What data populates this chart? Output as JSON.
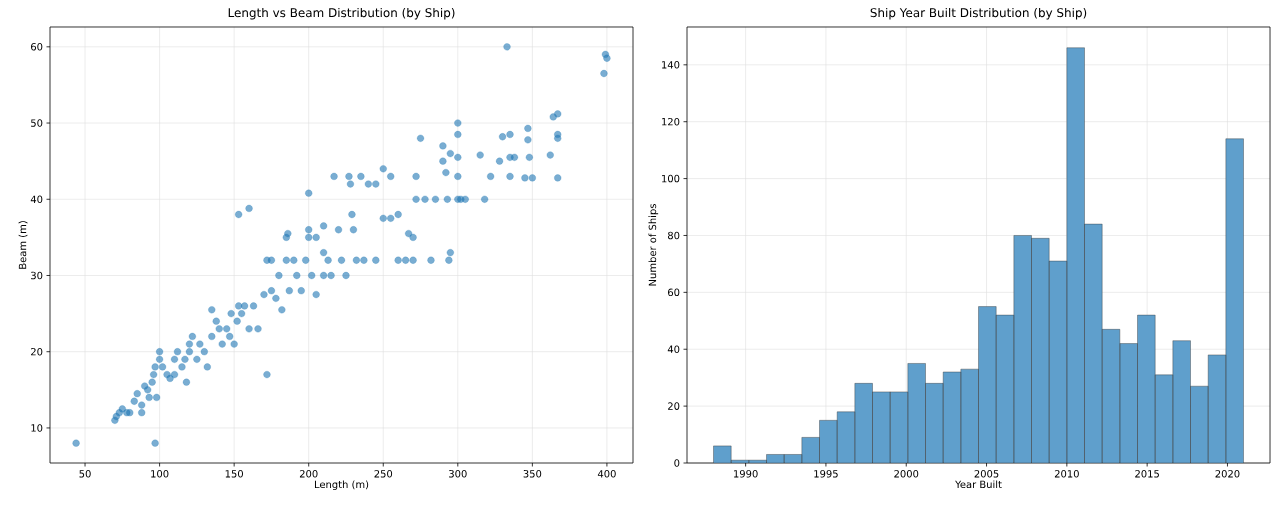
{
  "chart_data": [
    {
      "type": "scatter",
      "title": "Length vs Beam Distribution (by Ship)",
      "xlabel": "Length (m)",
      "ylabel": "Beam (m)",
      "color": "#1f77b4",
      "marker": "circle",
      "grid": true,
      "xlim": [
        26.5,
        417.5
      ],
      "ylim": [
        5.4,
        62.6
      ],
      "xticks": [
        50,
        100,
        150,
        200,
        250,
        300,
        350,
        400
      ],
      "yticks": [
        10,
        20,
        30,
        40,
        50,
        60
      ],
      "x": [
        44,
        97,
        70,
        71,
        73,
        75,
        78,
        80,
        83,
        85,
        88,
        88,
        90,
        92,
        93,
        95,
        96,
        97,
        98,
        100,
        100,
        102,
        105,
        107,
        110,
        110,
        112,
        115,
        117,
        118,
        120,
        120,
        122,
        125,
        127,
        130,
        132,
        135,
        135,
        138,
        140,
        142,
        145,
        147,
        148,
        150,
        152,
        153,
        153,
        155,
        157,
        160,
        160,
        163,
        166,
        170,
        172,
        172,
        175,
        175,
        178,
        180,
        182,
        185,
        185,
        186,
        187,
        190,
        192,
        195,
        198,
        200,
        200,
        200,
        202,
        205,
        205,
        210,
        210,
        210,
        213,
        215,
        217,
        220,
        222,
        225,
        227,
        228,
        229,
        230,
        232,
        235,
        237,
        240,
        245,
        245,
        250,
        250,
        255,
        255,
        260,
        260,
        265,
        267,
        270,
        270,
        272,
        272,
        275,
        278,
        282,
        285,
        290,
        290,
        292,
        293,
        294,
        295,
        295,
        300,
        300,
        300,
        300,
        300,
        302,
        305,
        315,
        318,
        322,
        328,
        330,
        333,
        335,
        335,
        335,
        338,
        345,
        347,
        347,
        348,
        350,
        362,
        364,
        367,
        367,
        367,
        367,
        399,
        400,
        398
      ],
      "values": [
        8,
        8,
        11,
        11.5,
        12,
        12.5,
        12,
        12,
        13.5,
        14.5,
        12,
        13,
        15.5,
        15,
        14,
        16,
        17,
        18,
        14,
        19,
        20,
        18,
        17,
        16.5,
        17,
        19,
        20,
        18,
        19,
        16,
        21,
        20,
        22,
        19,
        21,
        20,
        18,
        22,
        25.5,
        24,
        23,
        21,
        23,
        22,
        25,
        21,
        24,
        26,
        38,
        25,
        26,
        23,
        38.8,
        26,
        23,
        27.5,
        17,
        32,
        28,
        32,
        27,
        30,
        25.5,
        32,
        35,
        35.5,
        28,
        32,
        30,
        28,
        32,
        36,
        40.8,
        35,
        30,
        27.5,
        35,
        30,
        33,
        36.5,
        32,
        30,
        43,
        36,
        32,
        30,
        43,
        42,
        38,
        36,
        32,
        43,
        32,
        42,
        32,
        42,
        44,
        37.5,
        37.5,
        43,
        32,
        38,
        32,
        35.5,
        35,
        32,
        40,
        43,
        48,
        40,
        32,
        40,
        45,
        47,
        43.5,
        40,
        32,
        33,
        46,
        48.5,
        50,
        45.5,
        43,
        40,
        40,
        40,
        45.8,
        40,
        43,
        45,
        48.2,
        60,
        48.5,
        45.5,
        43,
        45.5,
        42.8,
        49.3,
        47.8,
        45.5,
        42.8,
        45.8,
        50.8,
        51.2,
        48.5,
        48,
        42.8,
        59,
        58.5,
        56.5
      ]
    },
    {
      "type": "histogram",
      "title": "Ship Year Built Distribution (by Ship)",
      "xlabel": "Year Built",
      "ylabel": "Number of Ships",
      "color": "#5f9fcc",
      "grid": true,
      "xlim": [
        1986.35,
        2022.65
      ],
      "ylim": [
        0,
        153.3
      ],
      "xticks": [
        1990,
        1995,
        2000,
        2005,
        2010,
        2015,
        2020
      ],
      "yticks": [
        0,
        20,
        40,
        60,
        80,
        100,
        120,
        140
      ],
      "bins": [
        1988,
        1989.1,
        1990.2,
        1991.3,
        1992.4,
        1993.5,
        1994.6,
        1995.7,
        1996.8,
        1997.9,
        1999,
        2000.1,
        2001.2,
        2002.3,
        2003.4,
        2004.5,
        2005.6,
        2006.7,
        2007.8,
        2008.9,
        2010,
        2011.1,
        2012.2,
        2013.3,
        2014.4,
        2015.5,
        2016.6,
        2017.7,
        2018.8,
        2019.9,
        2021
      ],
      "values": [
        6,
        1,
        1,
        3,
        3,
        9,
        15,
        18,
        28,
        25,
        25,
        35,
        28,
        32,
        33,
        55,
        52,
        80,
        79,
        71,
        146,
        84,
        47,
        42,
        52,
        31,
        43,
        27,
        38,
        114
      ]
    }
  ]
}
